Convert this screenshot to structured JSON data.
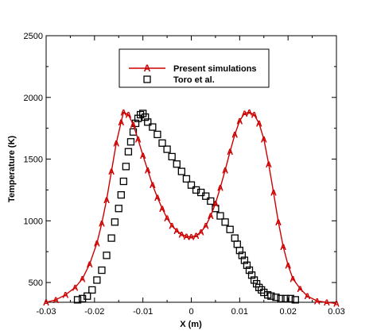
{
  "chart_data": {
    "type": "scatter",
    "xlabel": "X (m)",
    "ylabel": "Temperature (K)",
    "xlim": [
      -0.03,
      0.03
    ],
    "ylim": [
      340,
      2500
    ],
    "x_ticks": [
      -0.03,
      -0.02,
      -0.01,
      0,
      0.01,
      0.02,
      0.03
    ],
    "x_tick_labels": [
      "-0.03",
      "-0.02",
      "-0.01",
      "0",
      "0.01",
      "0.02",
      "0.03"
    ],
    "y_ticks": [
      500,
      1000,
      1500,
      2000,
      2500
    ],
    "y_tick_labels": [
      "500",
      "1000",
      "1500",
      "2000",
      "2500"
    ],
    "grid": false,
    "legend_position": "top-center",
    "series": [
      {
        "name": "Present simulations",
        "kind": "line-markers",
        "marker": "A",
        "color": "#cc0000",
        "x": [
          -0.03,
          -0.028,
          -0.026,
          -0.024,
          -0.0225,
          -0.021,
          -0.0195,
          -0.0185,
          -0.0175,
          -0.0165,
          -0.0155,
          -0.0145,
          -0.014,
          -0.013,
          -0.012,
          -0.011,
          -0.01,
          -0.009,
          -0.008,
          -0.007,
          -0.006,
          -0.005,
          -0.004,
          -0.003,
          -0.002,
          -0.001,
          0.0,
          0.001,
          0.002,
          0.003,
          0.004,
          0.005,
          0.006,
          0.007,
          0.008,
          0.009,
          0.01,
          0.011,
          0.012,
          0.013,
          0.014,
          0.015,
          0.016,
          0.017,
          0.018,
          0.019,
          0.02,
          0.021,
          0.0225,
          0.024,
          0.026,
          0.028,
          0.03
        ],
        "y": [
          340,
          360,
          400,
          460,
          530,
          650,
          820,
          980,
          1170,
          1400,
          1630,
          1800,
          1880,
          1860,
          1780,
          1660,
          1530,
          1410,
          1290,
          1190,
          1100,
          1020,
          960,
          920,
          890,
          875,
          870,
          880,
          910,
          960,
          1040,
          1140,
          1270,
          1410,
          1560,
          1700,
          1810,
          1870,
          1880,
          1860,
          1790,
          1660,
          1460,
          1230,
          990,
          790,
          640,
          530,
          450,
          390,
          350,
          340,
          330
        ]
      },
      {
        "name": "Toro et al.",
        "kind": "markers",
        "marker": "square",
        "color": "#000000",
        "x": [
          -0.0235,
          -0.0225,
          -0.0215,
          -0.0205,
          -0.0195,
          -0.0185,
          -0.0175,
          -0.0165,
          -0.0158,
          -0.015,
          -0.0145,
          -0.014,
          -0.0135,
          -0.013,
          -0.0125,
          -0.012,
          -0.0115,
          -0.011,
          -0.0105,
          -0.01,
          -0.0095,
          -0.009,
          -0.008,
          -0.007,
          -0.006,
          -0.005,
          -0.004,
          -0.003,
          -0.002,
          -0.001,
          0.0,
          0.001,
          0.002,
          0.003,
          0.004,
          0.005,
          0.006,
          0.007,
          0.008,
          0.009,
          0.0095,
          0.01,
          0.0105,
          0.011,
          0.0115,
          0.012,
          0.0125,
          0.013,
          0.0135,
          0.014,
          0.0145,
          0.015,
          0.0158,
          0.0165,
          0.0175,
          0.0185,
          0.0195,
          0.0205,
          0.0215
        ],
        "y": [
          360,
          370,
          390,
          440,
          520,
          600,
          720,
          860,
          990,
          1100,
          1210,
          1320,
          1440,
          1560,
          1640,
          1720,
          1790,
          1830,
          1860,
          1870,
          1840,
          1800,
          1760,
          1700,
          1630,
          1580,
          1520,
          1460,
          1400,
          1340,
          1290,
          1250,
          1230,
          1200,
          1160,
          1100,
          1040,
          990,
          930,
          860,
          810,
          760,
          720,
          680,
          640,
          600,
          560,
          520,
          490,
          460,
          440,
          420,
          400,
          390,
          380,
          370,
          370,
          370,
          360
        ]
      }
    ]
  }
}
